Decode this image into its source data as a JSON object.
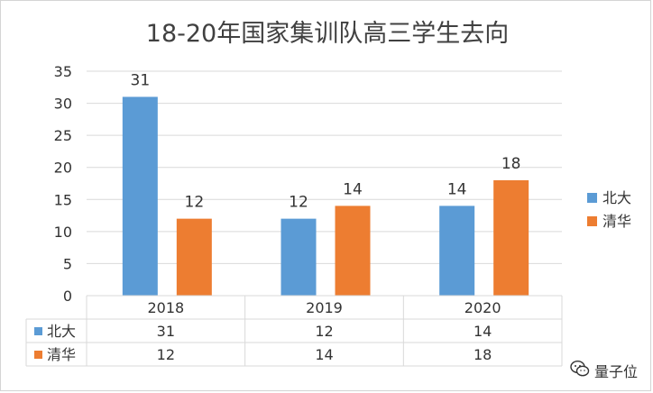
{
  "chart_data": {
    "type": "bar",
    "title": "18-20年国家集训队高三学生去向",
    "categories": [
      "2018",
      "2019",
      "2020"
    ],
    "series": [
      {
        "name": "北大",
        "values": [
          31,
          12,
          14
        ],
        "color": "#5b9bd5"
      },
      {
        "name": "清华",
        "values": [
          12,
          14,
          18
        ],
        "color": "#ed7d31"
      }
    ],
    "ylim": [
      0,
      35
    ],
    "yticks": [
      0,
      5,
      10,
      15,
      20,
      25,
      30,
      35
    ],
    "grid": true,
    "legend": "right",
    "data_table": true
  },
  "watermark": {
    "text": "量子位",
    "icon": "wechat-icon"
  }
}
